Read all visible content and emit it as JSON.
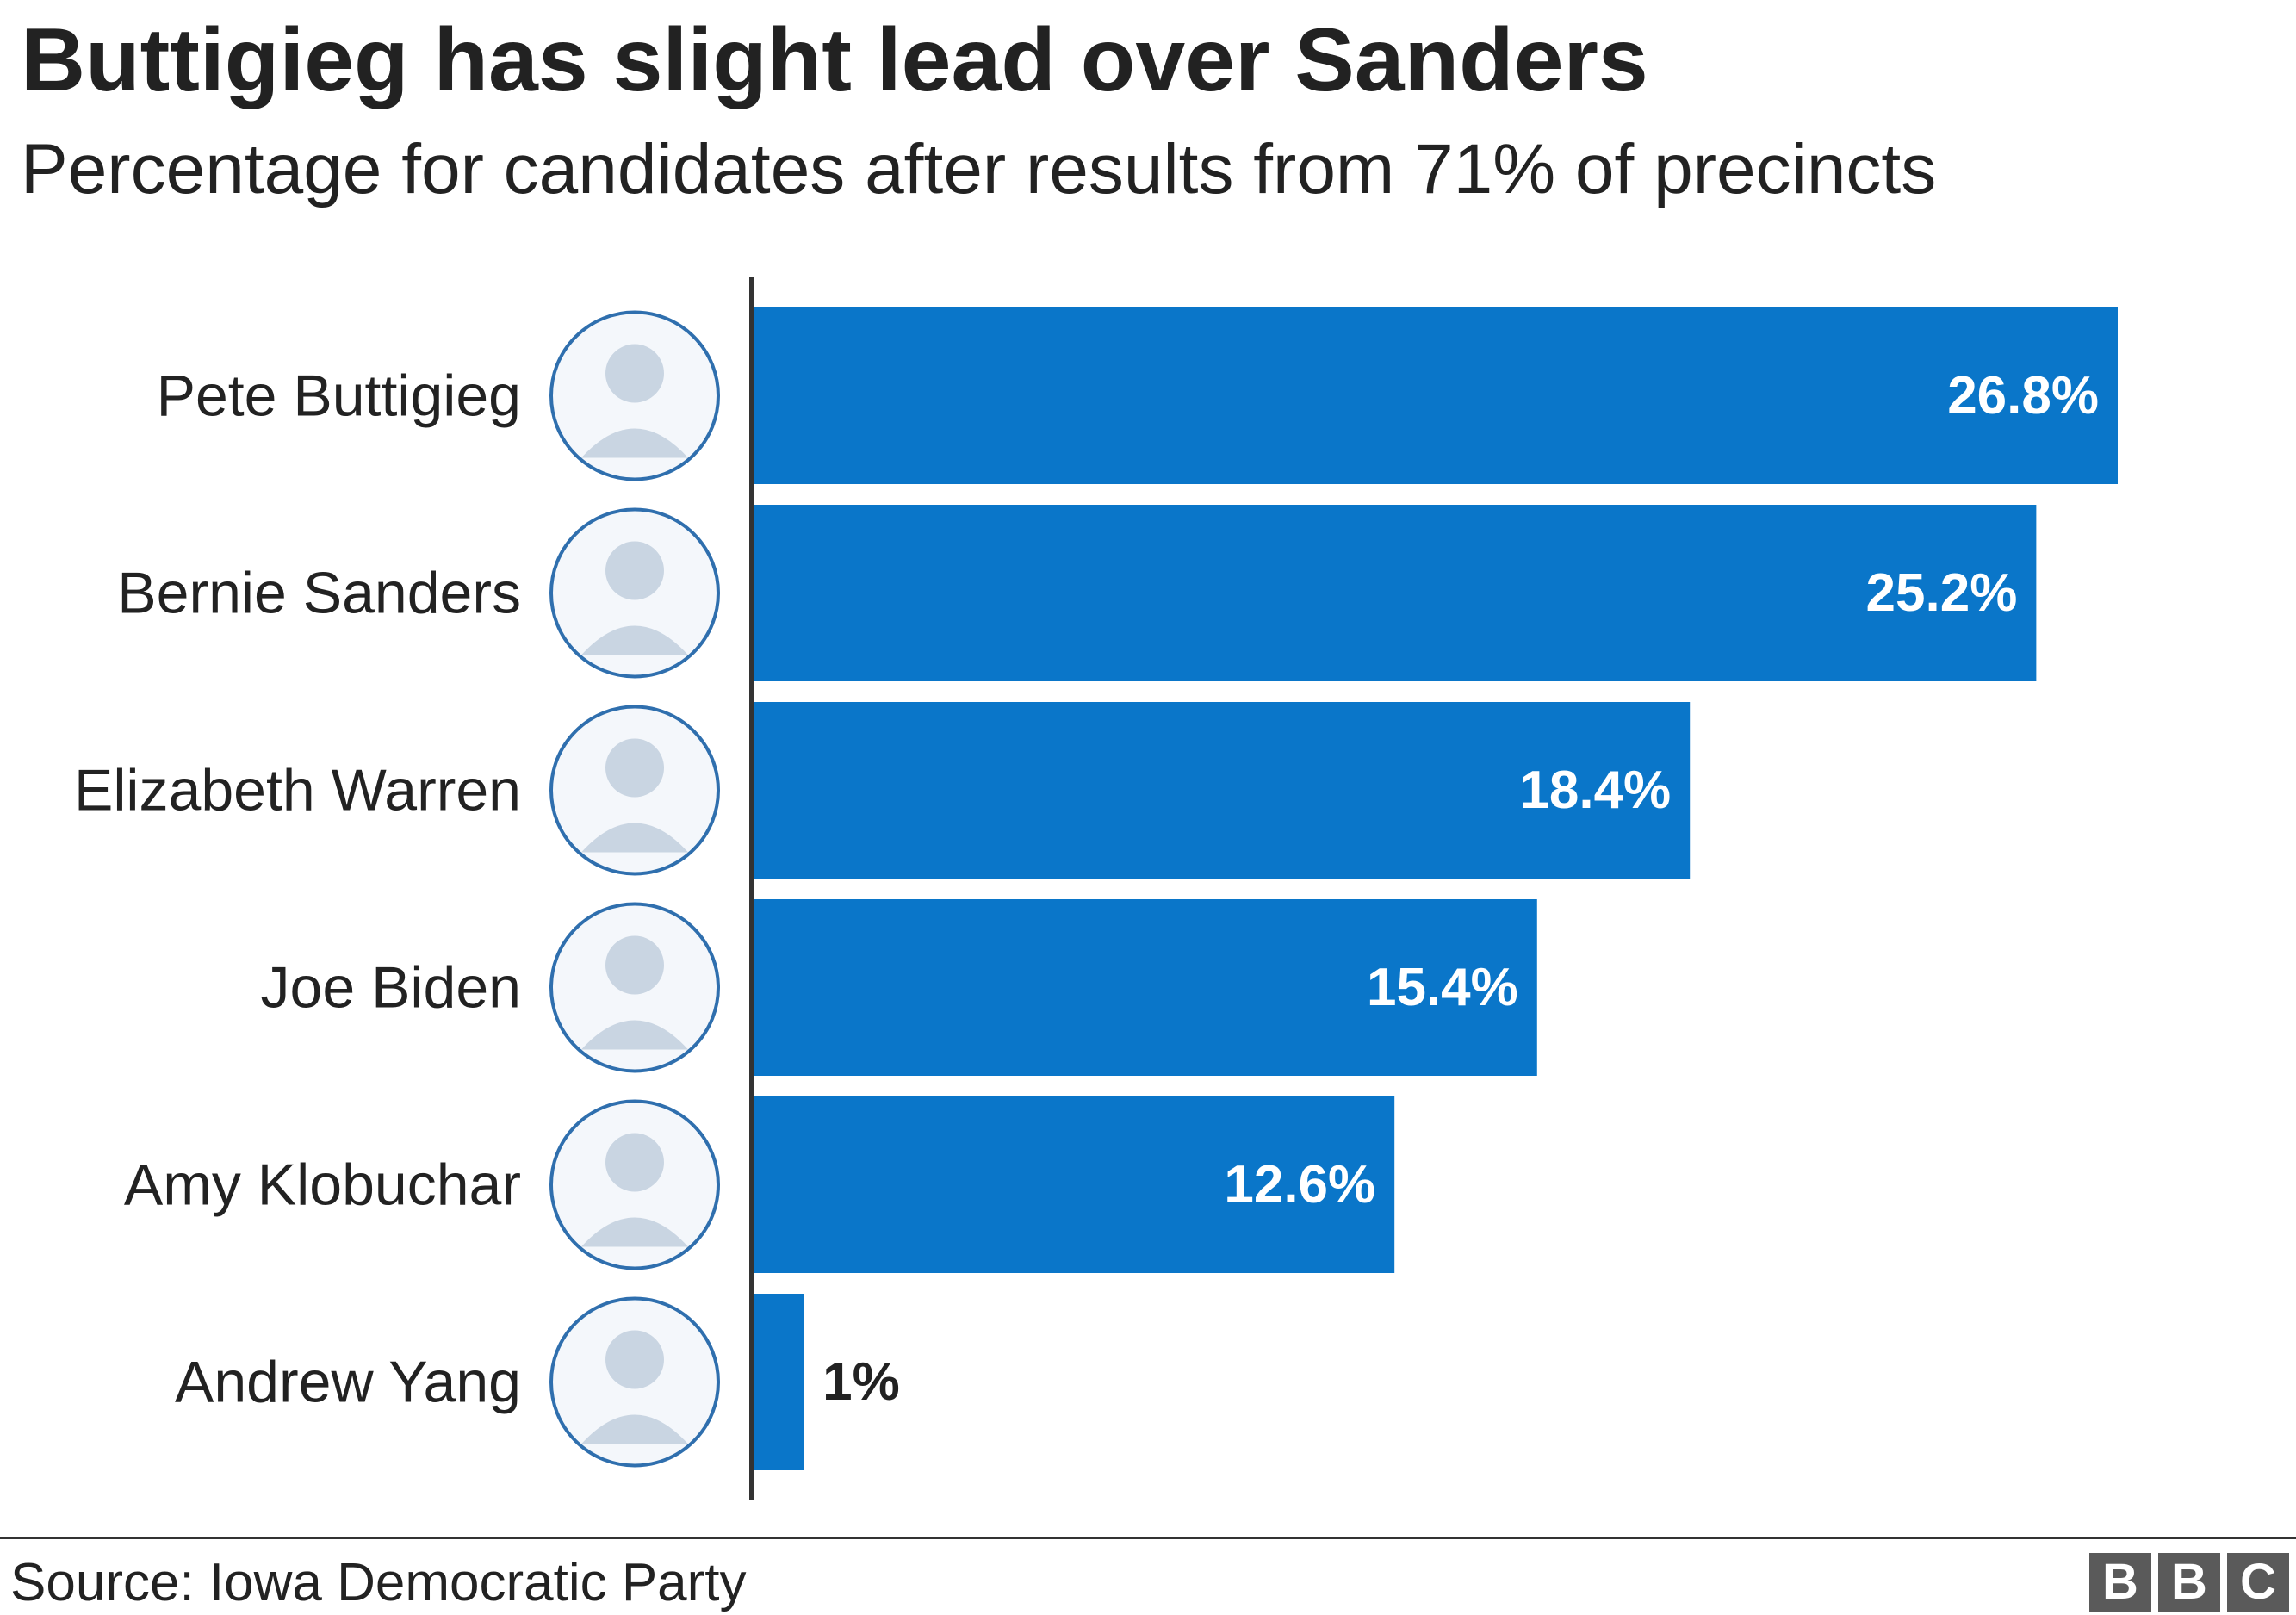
{
  "title": "Buttigieg has slight lead over Sanders",
  "subtitle": "Percentage for candidates after results from 71% of precincts",
  "source": "Source: Iowa Democratic Party",
  "logo": [
    "B",
    "B",
    "C"
  ],
  "colors": {
    "bar": "#0a76c9",
    "axis": "#333333",
    "text": "#222222",
    "label_inside": "#ffffff",
    "label_outside": "#222222",
    "avatar_ring": "#2f6fae"
  },
  "chart_data": {
    "type": "bar",
    "orientation": "horizontal",
    "categories": [
      "Pete Buttigieg",
      "Bernie Sanders",
      "Elizabeth Warren",
      "Joe Biden",
      "Amy Klobuchar",
      "Andrew Yang"
    ],
    "values": [
      26.8,
      25.2,
      18.4,
      15.4,
      12.6,
      1
    ],
    "value_labels": [
      "26.8%",
      "25.2%",
      "18.4%",
      "15.4%",
      "12.6%",
      "1%"
    ],
    "icons": [
      "portrait-icon",
      "portrait-icon",
      "portrait-icon",
      "portrait-icon",
      "portrait-icon",
      "portrait-icon"
    ],
    "xlim": [
      0,
      26.8
    ],
    "grid": false,
    "legend": "none"
  }
}
